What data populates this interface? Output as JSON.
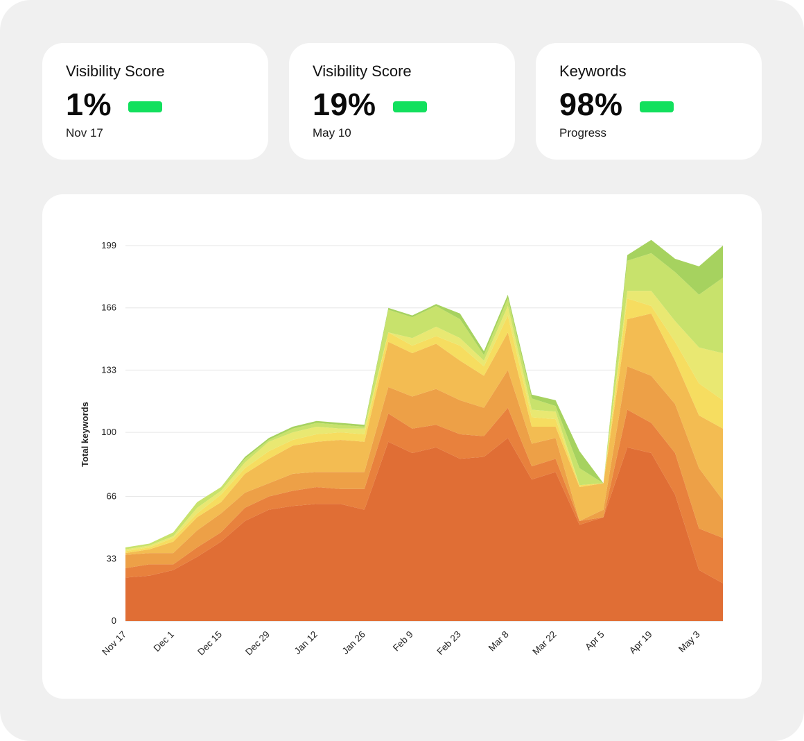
{
  "cards": [
    {
      "label": "Visibility Score",
      "value": "1%",
      "sub": "Nov 17"
    },
    {
      "label": "Visibility Score",
      "value": "19%",
      "sub": "May 10"
    },
    {
      "label": "Keywords",
      "value": "98%",
      "sub": "Progress"
    }
  ],
  "colors": {
    "indicator": "#12e05d",
    "series": [
      "#e06e35",
      "#e8813d",
      "#eda047",
      "#f3bc52",
      "#f6dd60",
      "#e9e872",
      "#c8e26c",
      "#a6d25f"
    ]
  },
  "chart_data": {
    "type": "area",
    "stacked": true,
    "ylabel": "Total keywords",
    "ylim": [
      0,
      199
    ],
    "yticks": [
      0,
      33,
      66,
      100,
      133,
      166,
      199
    ],
    "xlim": [
      0,
      175
    ],
    "xticks": [
      {
        "x": 0,
        "label": "Nov 17"
      },
      {
        "x": 14,
        "label": "Dec 1"
      },
      {
        "x": 28,
        "label": "Dec 15"
      },
      {
        "x": 42,
        "label": "Dec 29"
      },
      {
        "x": 56,
        "label": "Jan 12"
      },
      {
        "x": 70,
        "label": "Jan 26"
      },
      {
        "x": 84,
        "label": "Feb 9"
      },
      {
        "x": 98,
        "label": "Feb 23"
      },
      {
        "x": 112,
        "label": "Mar 8"
      },
      {
        "x": 126,
        "label": "Mar 22"
      },
      {
        "x": 140,
        "label": "Apr 5"
      },
      {
        "x": 154,
        "label": "Apr 19"
      },
      {
        "x": 168,
        "label": "May 3"
      }
    ],
    "x": [
      0,
      7,
      14,
      21,
      28,
      35,
      42,
      49,
      56,
      63,
      70,
      77,
      84,
      91,
      98,
      105,
      112,
      119,
      126,
      133,
      140,
      147,
      154,
      161,
      168,
      175
    ],
    "series": [
      {
        "values": [
          23,
          24,
          27,
          34,
          42,
          53,
          59,
          61,
          62,
          62,
          59,
          95,
          89,
          92,
          86,
          87,
          97,
          75,
          79,
          51,
          55,
          92,
          89,
          67,
          27,
          20
        ]
      },
      {
        "values": [
          5,
          6,
          3,
          5,
          5,
          7,
          7,
          8,
          9,
          8,
          11,
          15,
          13,
          12,
          13,
          11,
          16,
          7,
          7,
          2,
          0,
          20,
          16,
          22,
          22,
          24
        ]
      },
      {
        "values": [
          7,
          6,
          6,
          9,
          10,
          8,
          7,
          9,
          8,
          9,
          9,
          14,
          17,
          19,
          18,
          15,
          20,
          12,
          11,
          0,
          4,
          23,
          25,
          26,
          32,
          20
        ]
      },
      {
        "values": [
          1,
          2,
          6,
          7,
          6,
          10,
          13,
          15,
          16,
          17,
          16,
          24,
          23,
          24,
          21,
          17,
          20,
          9,
          6,
          18,
          14,
          25,
          33,
          23,
          28,
          38
        ]
      },
      {
        "values": [
          1,
          1,
          2,
          2,
          4,
          3,
          4,
          3,
          4,
          4,
          4,
          5,
          4,
          4,
          8,
          5,
          9,
          5,
          4,
          1,
          0,
          11,
          4,
          10,
          17,
          15
        ]
      },
      {
        "values": [
          1,
          1,
          1,
          3,
          2,
          3,
          5,
          4,
          4,
          2,
          3,
          0,
          4,
          5,
          4,
          3,
          5,
          4,
          4,
          0,
          0,
          4,
          8,
          11,
          19,
          25
        ]
      },
      {
        "values": [
          1,
          1,
          2,
          3,
          2,
          2,
          1,
          2,
          2,
          2,
          1,
          12,
          11,
          11,
          10,
          3,
          4,
          6,
          3,
          9,
          0,
          16,
          20,
          26,
          28,
          40
        ]
      },
      {
        "values": [
          0,
          0,
          0,
          0,
          0,
          1,
          1,
          1,
          1,
          1,
          1,
          1,
          1,
          1,
          3,
          2,
          2,
          2,
          3,
          9,
          0,
          3,
          7,
          7,
          15,
          17
        ]
      }
    ]
  }
}
